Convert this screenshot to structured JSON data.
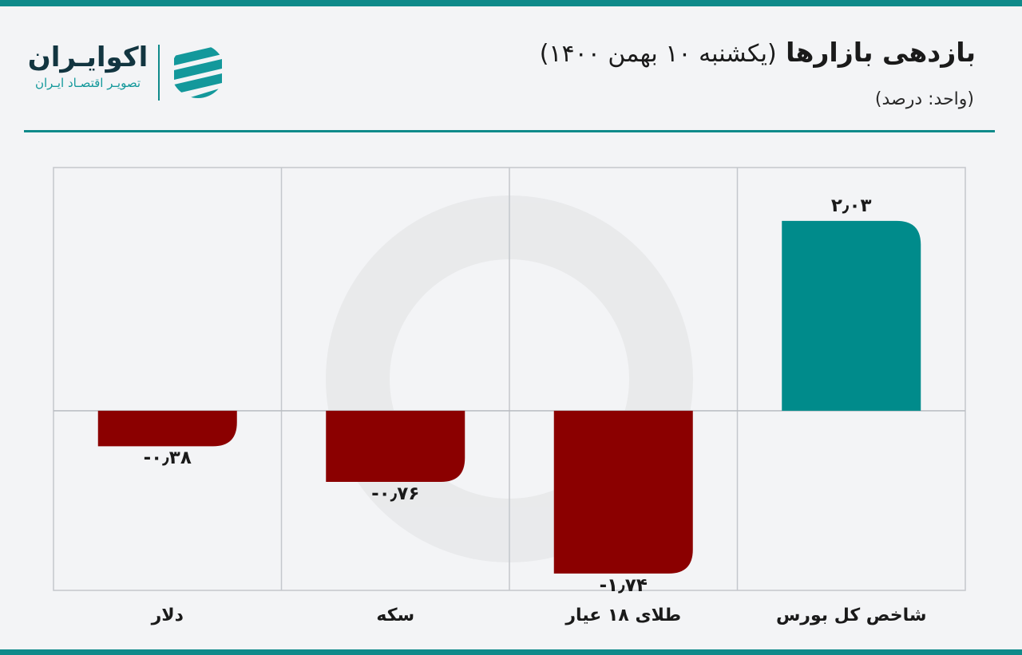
{
  "header": {
    "title_main": "بازدهی بازارها",
    "title_sub": "(یکشنبه ۱۰ بهمن ۱۴۰۰)",
    "unit": "(واحد: درصد)"
  },
  "brand": {
    "name": "اکوایـران",
    "tagline": "تصویـر اقتصـاد ایـران",
    "logo_icon": "stacked-stripes-circle-icon"
  },
  "colors": {
    "accent": "#0f8a8a",
    "positive": "#008b8b",
    "negative": "#8b0000"
  },
  "chart_data": {
    "type": "bar",
    "orientation": "vertical",
    "categories": [
      "شاخص کل بورس",
      "طلای ۱۸ عیار",
      "سکه",
      "دلار"
    ],
    "values": [
      2.03,
      -1.74,
      -0.76,
      -0.38
    ],
    "value_labels": [
      "۲٫۰۳",
      "-۱٫۷۴",
      "-۰٫۷۶",
      "-۰٫۳۸"
    ],
    "ylim": [
      -1.92,
      2.6
    ],
    "grid": true,
    "direction": "rtl"
  }
}
